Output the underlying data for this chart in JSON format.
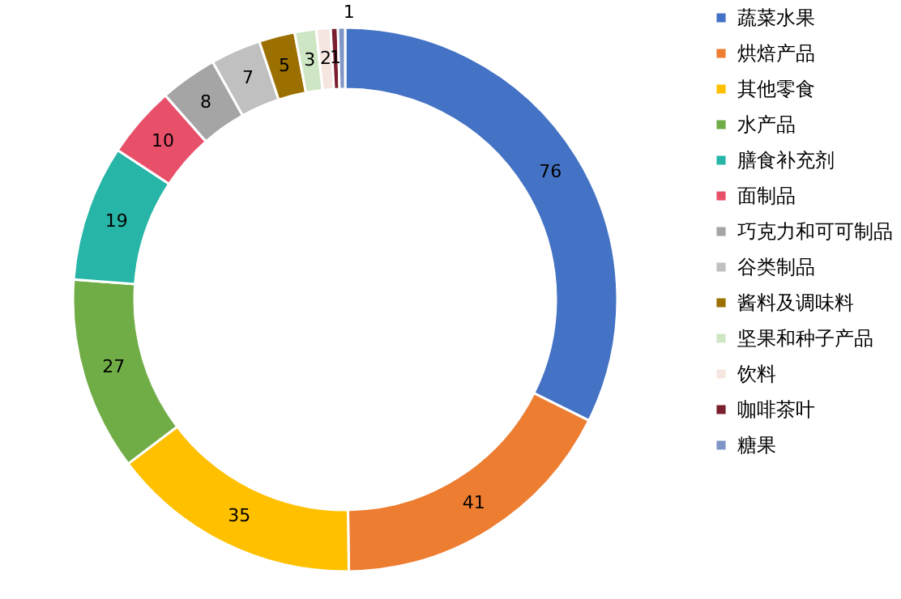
{
  "chart_data": {
    "type": "donut",
    "categories": [
      "蔬菜水果",
      "烘焙产品",
      "其他零食",
      "水产品",
      "膳食补充剂",
      "面制品",
      "巧克力和可可制品",
      "谷类制品",
      "酱料及调味料",
      "坚果和种子产品",
      "饮料",
      "咖啡茶叶",
      "糖果"
    ],
    "values": [
      76,
      41,
      35,
      27,
      19,
      10,
      8,
      7,
      5,
      3,
      2,
      1,
      1
    ],
    "colors": [
      "#4472c4",
      "#ed7d31",
      "#ffc000",
      "#70ad47",
      "#26b5a6",
      "#e8506a",
      "#a5a5a5",
      "#c0c0c0",
      "#9c7000",
      "#cfe6c4",
      "#f6e6e0",
      "#7b1f2f",
      "#7f96c6"
    ],
    "data_labels": true,
    "legend": "right"
  }
}
